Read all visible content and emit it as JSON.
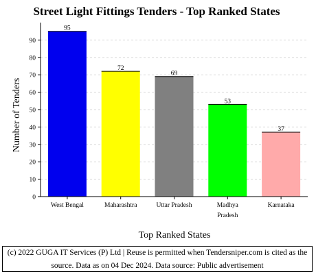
{
  "chart_data": {
    "type": "bar",
    "title": "Street Light Fittings Tenders - Top Ranked States",
    "xlabel": "Top Ranked States",
    "ylabel": "Number of Tenders",
    "categories": [
      [
        "West Bengal"
      ],
      [
        "Maharashtra"
      ],
      [
        "Uttar Pradesh"
      ],
      [
        "Madhya",
        "Pradesh"
      ],
      [
        "Karnataka"
      ]
    ],
    "values": [
      95,
      72,
      69,
      53,
      37
    ],
    "value_labels": [
      "95",
      "72",
      "69",
      "53",
      "37"
    ],
    "colors": [
      "#0000ee",
      "#ffff00",
      "#808080",
      "#00ff00",
      "#ffaaaa"
    ],
    "ylim": [
      0,
      100
    ],
    "yticks": [
      0,
      10,
      20,
      30,
      40,
      50,
      60,
      70,
      80,
      90
    ],
    "grid": true,
    "legend": "none"
  },
  "footer": {
    "text": "(c) 2022 GUGA IT Services (P) Ltd | Reuse is permitted when Tendersniper.com is cited as the source. Data as on 04 Dec 2024. Data source: Public advertisement"
  }
}
